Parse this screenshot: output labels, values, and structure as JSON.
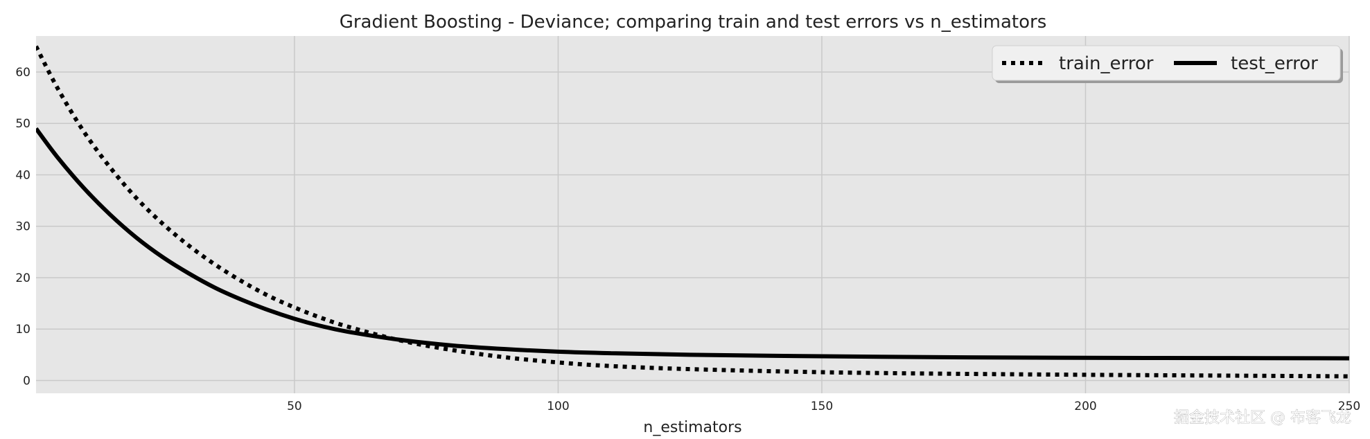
{
  "watermark": "掘金技术社区 @ 布客飞龙",
  "chart_data": {
    "type": "line",
    "title": "Gradient Boosting - Deviance; comparing train and test errors vs n_estimators",
    "xlabel": "n_estimators",
    "ylabel": "",
    "xlim": [
      1,
      250
    ],
    "ylim": [
      -2.5,
      67
    ],
    "xticks": [
      50,
      100,
      150,
      200,
      250
    ],
    "yticks": [
      0,
      10,
      20,
      30,
      40,
      50,
      60
    ],
    "grid": true,
    "legend_position": "top-right",
    "series": [
      {
        "name": "train_error",
        "style": "dotted",
        "color": "#000000",
        "x": [
          1,
          5,
          10,
          15,
          20,
          25,
          30,
          35,
          40,
          45,
          50,
          55,
          60,
          70,
          80,
          90,
          100,
          110,
          125,
          150,
          175,
          200,
          225,
          250
        ],
        "y": [
          65,
          57,
          48.5,
          41.5,
          35.5,
          30.5,
          26.2,
          22.5,
          19.3,
          16.5,
          14.2,
          12.2,
          10.5,
          7.8,
          5.9,
          4.5,
          3.5,
          2.8,
          2.2,
          1.6,
          1.3,
          1.1,
          0.95,
          0.8
        ]
      },
      {
        "name": "test_error",
        "style": "solid",
        "color": "#000000",
        "x": [
          1,
          5,
          10,
          15,
          20,
          25,
          30,
          35,
          40,
          45,
          50,
          55,
          60,
          70,
          80,
          90,
          100,
          110,
          125,
          150,
          175,
          200,
          225,
          250
        ],
        "y": [
          49,
          43.5,
          37.5,
          32.3,
          27.8,
          24,
          20.8,
          18,
          15.7,
          13.7,
          12,
          10.6,
          9.5,
          7.9,
          6.8,
          6.1,
          5.6,
          5.3,
          5,
          4.7,
          4.5,
          4.4,
          4.35,
          4.3
        ]
      }
    ]
  },
  "colors": {
    "plot_background": "#e6e6e6",
    "grid": "#c9c9c9",
    "line": "#000000"
  }
}
